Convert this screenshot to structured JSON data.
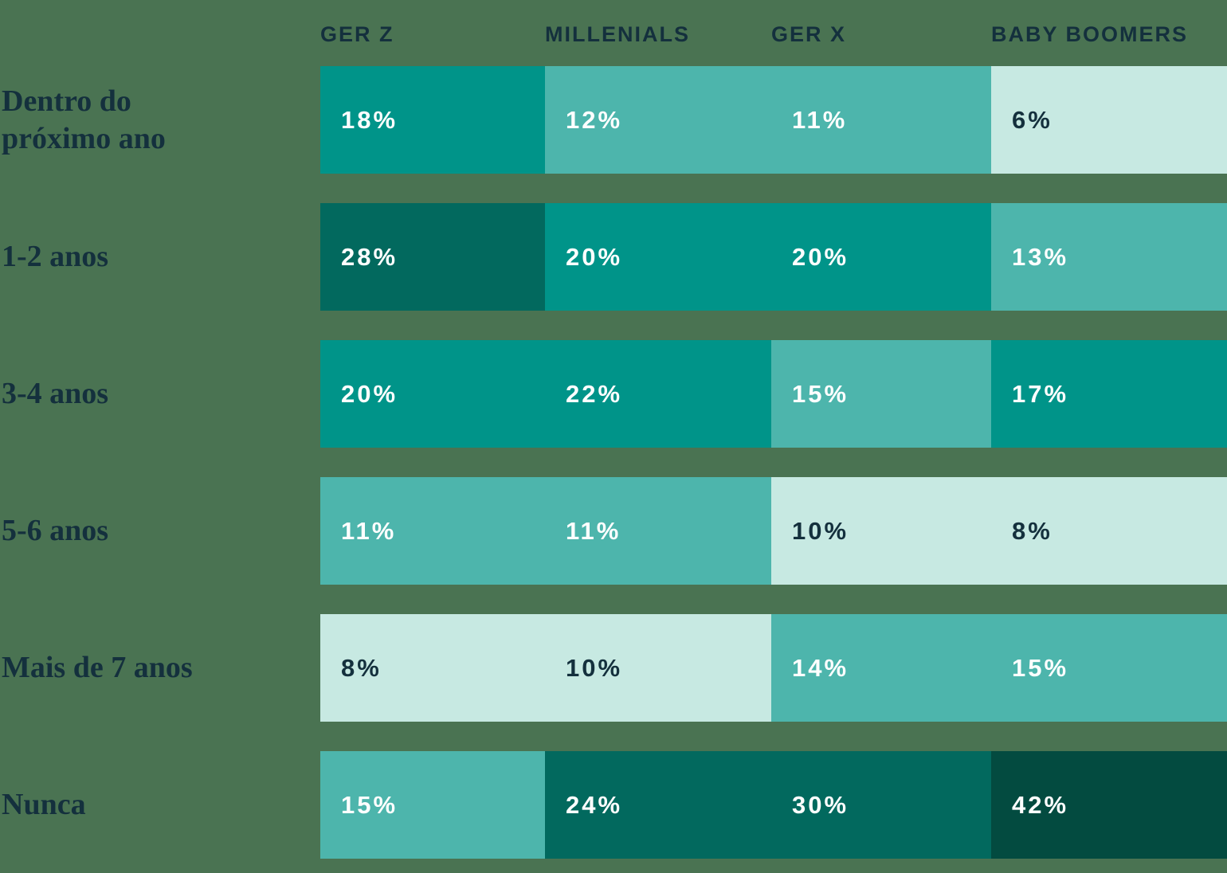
{
  "page": {
    "background_color": "#4A7352",
    "header_text_color": "#14303D",
    "row_label_text_color": "#14303D"
  },
  "chart_data": {
    "type": "heatmap",
    "columns": [
      "GER Z",
      "MILLENIALS",
      "GER X",
      "BABY BOOMERS"
    ],
    "rows": [
      "Dentro do\npróximo ano",
      "1-2 anos",
      "3-4 anos",
      "5-6 anos",
      "Mais de 7 anos",
      "Nunca"
    ],
    "values": [
      [
        18,
        12,
        11,
        6
      ],
      [
        28,
        20,
        20,
        13
      ],
      [
        20,
        22,
        15,
        17
      ],
      [
        11,
        11,
        10,
        8
      ],
      [
        8,
        10,
        14,
        15
      ],
      [
        15,
        24,
        30,
        42
      ]
    ],
    "value_suffix": "%",
    "legend": "none",
    "grid": "off",
    "color_scale": [
      {
        "value_max": 10,
        "cell": "#C7E9E2",
        "text": "#14303D"
      },
      {
        "value_max": 16,
        "cell": "#4DB5AC",
        "text": "#FFFFFF"
      },
      {
        "value_max": 22,
        "cell": "#009489",
        "text": "#FFFFFF"
      },
      {
        "value_max": 31,
        "cell": "#02695E",
        "text": "#FFFFFF"
      },
      {
        "value_max": 100,
        "cell": "#034B40",
        "text": "#FFFFFF"
      }
    ]
  }
}
